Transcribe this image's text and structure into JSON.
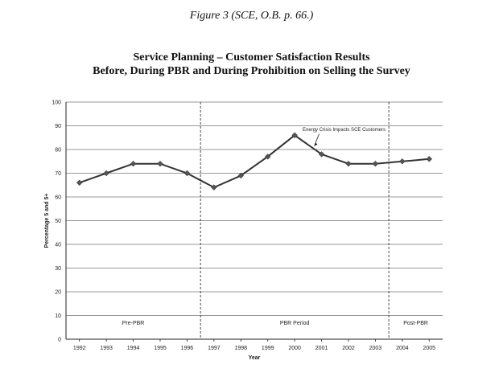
{
  "figure_caption": "Figure 3 (SCE, O.B. p. 66.)",
  "chart_data": {
    "type": "line",
    "title_line1": "Service Planning – Customer Satisfaction Results",
    "title_line2": "Before, During PBR and During Prohibition on Selling the Survey",
    "xlabel": "Year",
    "ylabel": "Percentage 5 and 5+",
    "ylim": [
      0,
      100
    ],
    "yticks": [
      0,
      10,
      20,
      30,
      40,
      50,
      60,
      70,
      80,
      90,
      100
    ],
    "categories": [
      "1992",
      "1993",
      "1994",
      "1995",
      "1996",
      "1997",
      "1998",
      "1999",
      "2000",
      "2001",
      "2002",
      "2003",
      "2004",
      "2005"
    ],
    "series": [
      {
        "values": [
          66,
          70,
          74,
          74,
          70,
          64,
          69,
          77,
          86,
          78,
          74,
          74,
          75,
          76
        ]
      }
    ],
    "grid": true,
    "regions": [
      {
        "label": "Pre-PBR",
        "from": "1992",
        "to": "1996"
      },
      {
        "label": "PBR Period",
        "from": "1997",
        "to": "2003"
      },
      {
        "label": "Post-PBR",
        "from": "2004",
        "to": "2005"
      }
    ],
    "annotation": {
      "text": "Energy Crisis Impacts SCE Customers",
      "x": "2001"
    },
    "line_color": "#333333",
    "marker_color": "#555555"
  }
}
